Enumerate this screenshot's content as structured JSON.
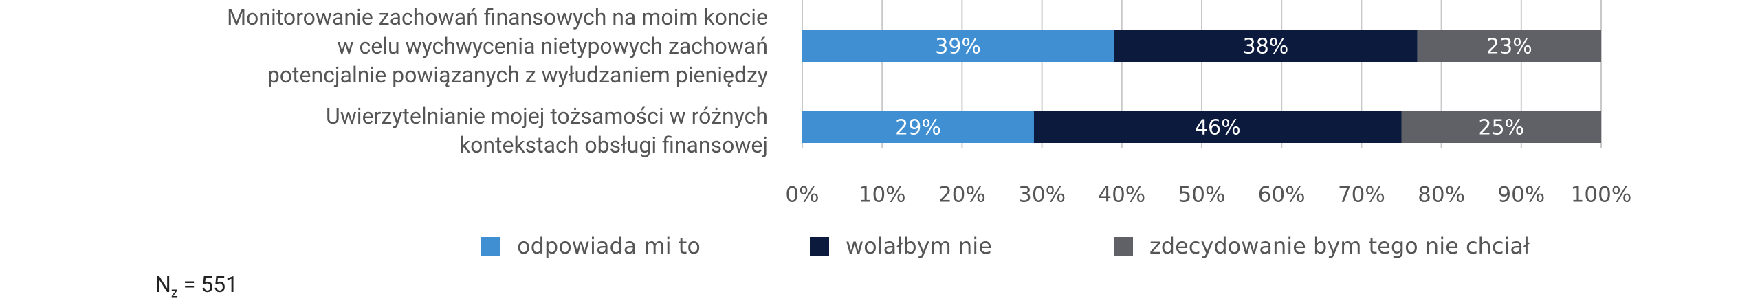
{
  "chart_data": {
    "type": "stacked-barh",
    "categories": [
      "Monitorowanie zachowań finansowych na moim koncie\nw celu wychwycenia nietypowych zachowań\npotencjalnie powiązanych z wyłudzaniem pieniędzy",
      "Uwierzytelnianie mojej tożsamości w różnych\nkontekstach obsługi finansowej"
    ],
    "series": [
      {
        "name": "odpowiada mi to",
        "color": "#3f8fd2",
        "values": [
          39,
          29
        ],
        "value_labels": [
          "39%",
          "29%"
        ]
      },
      {
        "name": "wolałbym nie",
        "color": "#0c1a3d",
        "values": [
          38,
          46
        ],
        "value_labels": [
          "38%",
          "46%"
        ]
      },
      {
        "name": "zdecydowanie bym tego nie chciał",
        "color": "#5f6166",
        "values": [
          23,
          25
        ],
        "value_labels": [
          "23%",
          "25%"
        ]
      }
    ],
    "xlim": [
      0,
      100
    ],
    "xticks": [
      {
        "value": 0,
        "label": "0%"
      },
      {
        "value": 10,
        "label": "10%"
      },
      {
        "value": 20,
        "label": "20%"
      },
      {
        "value": 30,
        "label": "30%"
      },
      {
        "value": 40,
        "label": "40%"
      },
      {
        "value": 50,
        "label": "50%"
      },
      {
        "value": 60,
        "label": "60%"
      },
      {
        "value": 70,
        "label": "70%"
      },
      {
        "value": 80,
        "label": "80%"
      },
      {
        "value": 90,
        "label": "90%"
      },
      {
        "value": 100,
        "label": "100%"
      }
    ],
    "grid": true,
    "legend": "bottom",
    "note": {
      "main": "N",
      "sub": "z",
      "rest": "= 551"
    }
  }
}
